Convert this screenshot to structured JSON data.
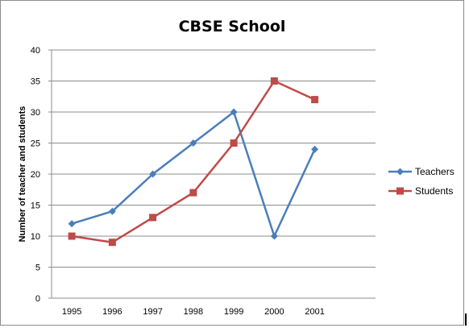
{
  "chart_data": {
    "type": "line",
    "title": "CBSE School",
    "xlabel": "",
    "ylabel": "Number of teacher and students",
    "categories": [
      "1995",
      "1996",
      "1997",
      "1998",
      "1999",
      "2000",
      "2001"
    ],
    "ylim": [
      0,
      40
    ],
    "yticks": [
      "0",
      "5",
      "10",
      "15",
      "20",
      "25",
      "30",
      "35",
      "40"
    ],
    "grid": true,
    "legend": "right",
    "series": [
      {
        "name": "Teachers",
        "values": [
          12,
          14,
          20,
          25,
          30,
          10,
          24
        ],
        "color": "#4a7ebb",
        "marker": "diamond"
      },
      {
        "name": "Students",
        "values": [
          10,
          9,
          13,
          17,
          25,
          35,
          32
        ],
        "color": "#be4b48",
        "marker": "square"
      }
    ]
  }
}
